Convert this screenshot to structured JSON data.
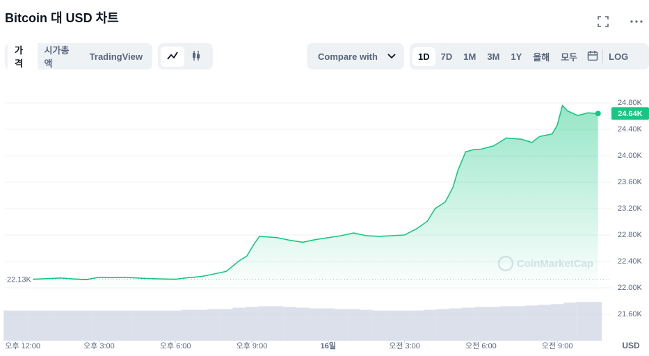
{
  "header": {
    "title": "Bitcoin 대 USD 차트",
    "tabs": [
      "가격",
      "시가총액",
      "TradingView"
    ],
    "compare": "Compare with",
    "ranges": [
      "1D",
      "7D",
      "1M",
      "3M",
      "1Y",
      "올해",
      "모두"
    ],
    "log": "LOG"
  },
  "chart_data": {
    "type": "line",
    "watermark": "CoinMarketCap",
    "unit": "USD",
    "up_color": "#16c784",
    "down_color": "#ea3943",
    "volume_color": "#cfd6e4",
    "x": [
      0.4,
      1,
      1.5,
      2,
      2.5,
      3,
      3.5,
      4,
      4.5,
      5,
      5.5,
      6,
      6.5,
      7,
      7.5,
      8,
      8.5,
      8.8,
      9.1,
      9.3,
      9.7,
      10,
      10.5,
      11,
      11.5,
      12,
      12.5,
      13,
      13.5,
      14,
      14.5,
      15,
      15.5,
      15.9,
      16.2,
      16.6,
      16.9,
      17.1,
      17.4,
      17.7,
      18,
      18.5,
      19,
      19.3,
      19.6,
      20,
      20.3,
      20.8,
      21,
      21.2,
      21.4,
      21.8,
      22.2,
      22.6
    ],
    "values": [
      22130,
      22140,
      22150,
      22135,
      22125,
      22160,
      22155,
      22160,
      22150,
      22140,
      22135,
      22130,
      22155,
      22170,
      22210,
      22250,
      22410,
      22480,
      22670,
      22780,
      22770,
      22760,
      22720,
      22690,
      22730,
      22760,
      22790,
      22830,
      22790,
      22780,
      22790,
      22800,
      22900,
      23010,
      23200,
      23300,
      23520,
      23780,
      24060,
      24090,
      24100,
      24150,
      24270,
      24260,
      24250,
      24200,
      24290,
      24330,
      24460,
      24760,
      24680,
      24610,
      24650,
      24640
    ],
    "value_labels": [
      "22.13K",
      null,
      null,
      null,
      null,
      null,
      null,
      null,
      null,
      null,
      null,
      null,
      null,
      null,
      null,
      null,
      null,
      null,
      null,
      null,
      null,
      null,
      null,
      null,
      null,
      null,
      null,
      null,
      null,
      null,
      null,
      null,
      null,
      null,
      null,
      null,
      null,
      null,
      null,
      null,
      null,
      null,
      null,
      null,
      null,
      null,
      null,
      null,
      null,
      null,
      null,
      null,
      null,
      "24.64K"
    ],
    "volume": {
      "x": [
        -0.5,
        0,
        0.5,
        1,
        1.5,
        2,
        2.5,
        3,
        3.5,
        4,
        4.5,
        5,
        5.5,
        6,
        6.5,
        7,
        7.5,
        8,
        8.5,
        9,
        9.5,
        10,
        10.5,
        11,
        11.5,
        12,
        12.5,
        13,
        13.5,
        14,
        14.5,
        15,
        15.5,
        16,
        16.5,
        17,
        17.5,
        18,
        18.5,
        19,
        19.5,
        20,
        20.5,
        21,
        21.5,
        22,
        22.5
      ],
      "values": [
        42,
        42,
        42,
        42,
        42,
        42,
        42,
        42,
        42,
        42,
        42,
        42,
        42,
        42,
        43,
        43,
        44,
        44,
        46,
        47,
        48,
        48,
        47,
        46,
        45,
        45,
        44,
        44,
        43,
        42,
        42,
        42,
        42,
        43,
        44,
        45,
        46,
        47,
        47,
        48,
        48,
        49,
        50,
        51,
        53,
        54,
        54
      ],
      "ylim": [
        0,
        60
      ]
    },
    "xlim": [
      -0.7,
      23.1
    ],
    "xticks": [
      {
        "value": 0,
        "label": "오후 12:00"
      },
      {
        "value": 3,
        "label": "오후 3:00"
      },
      {
        "value": 6,
        "label": "오후 6:00"
      },
      {
        "value": 9,
        "label": "오후 9:00"
      },
      {
        "value": 12,
        "label": "16일"
      },
      {
        "value": 15,
        "label": "오전 3:00"
      },
      {
        "value": 18,
        "label": "오전 6:00"
      },
      {
        "value": 21,
        "label": "오전 9:00"
      }
    ],
    "ylim": [
      21200,
      25200
    ],
    "yticks": [
      {
        "value": 21600,
        "label": "21.60K"
      },
      {
        "value": 22000,
        "label": "22.00K"
      },
      {
        "value": 22400,
        "label": "22.40K"
      },
      {
        "value": 22800,
        "label": "22.80K"
      },
      {
        "value": 23200,
        "label": "23.20K"
      },
      {
        "value": 23600,
        "label": "23.60K"
      },
      {
        "value": 24000,
        "label": "24.00K"
      },
      {
        "value": 24400,
        "label": "24.40K"
      },
      {
        "value": 24800,
        "label": "24.80K"
      }
    ],
    "grid": true
  }
}
